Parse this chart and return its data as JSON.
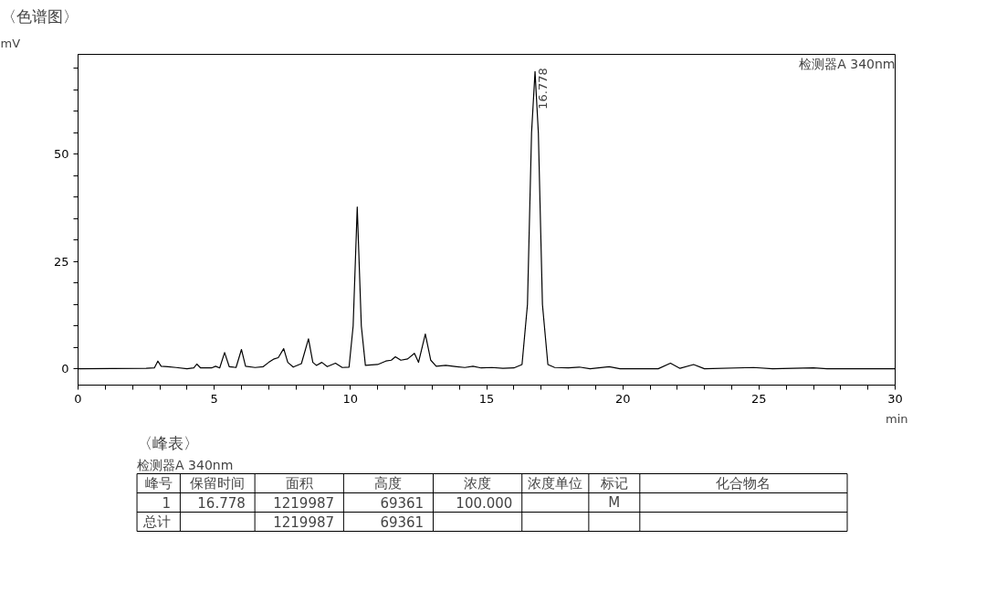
{
  "chart_data": [
    {
      "type": "line",
      "title": "〈色谱图〉",
      "ylabel": "mV",
      "xlabel": "min",
      "x": [
        0,
        2.5,
        2.8,
        2.93,
        3.05,
        3.3,
        3.6,
        4.0,
        4.25,
        4.36,
        4.5,
        4.9,
        5.05,
        5.2,
        5.38,
        5.55,
        5.8,
        6.0,
        6.15,
        6.5,
        6.8,
        7.0,
        7.2,
        7.35,
        7.55,
        7.7,
        7.9,
        8.2,
        8.46,
        8.62,
        8.75,
        8.95,
        9.15,
        9.45,
        9.7,
        9.95,
        10.1,
        10.25,
        10.4,
        10.55,
        11.0,
        11.3,
        11.5,
        11.65,
        11.85,
        12.1,
        12.35,
        12.5,
        12.75,
        12.95,
        13.15,
        13.5,
        13.9,
        14.2,
        14.5,
        14.8,
        15.2,
        15.6,
        16.0,
        16.3,
        16.5,
        16.65,
        16.778,
        16.9,
        17.05,
        17.25,
        17.5,
        18.0,
        18.4,
        18.8,
        19.5,
        19.9,
        21.3,
        21.75,
        22.1,
        22.6,
        23.0,
        24.8,
        25.5,
        27.0,
        27.5,
        30
      ],
      "series": [
        {
          "color": "#000000",
          "values": [
            0,
            0.1,
            0.2,
            1.8,
            0.6,
            0.5,
            0.3,
            0,
            0.2,
            1.1,
            0.2,
            0.2,
            0.6,
            0.2,
            3.8,
            0.5,
            0.3,
            4.5,
            0.6,
            0.3,
            0.5,
            1.5,
            2.3,
            2.6,
            4.7,
            1.5,
            0.4,
            1.2,
            7.0,
            1.5,
            0.8,
            1.5,
            0.5,
            1.3,
            0.3,
            0.4,
            10,
            37.7,
            10,
            0.8,
            1.0,
            1.8,
            2.0,
            2.8,
            2.0,
            2.3,
            3.6,
            1.5,
            8.1,
            2.0,
            0.6,
            0.8,
            0.5,
            0.3,
            0.6,
            0.2,
            0.3,
            0.1,
            0.2,
            1.0,
            15,
            55,
            69.3,
            55,
            15,
            1.0,
            0.3,
            0.2,
            0.4,
            0,
            0.5,
            0,
            0,
            1.3,
            0.1,
            1.0,
            0,
            0.3,
            0,
            0.2,
            0,
            0
          ]
        }
      ],
      "xlim": [
        0,
        30
      ],
      "ylim": [
        -3.8,
        73.3
      ],
      "xticks": [
        0,
        {
          "value": 1,
          "label": null
        },
        {
          "value": 2,
          "label": null
        },
        {
          "value": 3,
          "label": null
        },
        {
          "value": 4,
          "label": null
        },
        5,
        {
          "value": 6,
          "label": null
        },
        {
          "value": 7,
          "label": null
        },
        {
          "value": 8,
          "label": null
        },
        {
          "value": 9,
          "label": null
        },
        10,
        {
          "value": 11,
          "label": null
        },
        {
          "value": 12,
          "label": null
        },
        {
          "value": 13,
          "label": null
        },
        {
          "value": 14,
          "label": null
        },
        15,
        {
          "value": 16,
          "label": null
        },
        {
          "value": 17,
          "label": null
        },
        {
          "value": 18,
          "label": null
        },
        {
          "value": 19,
          "label": null
        },
        20,
        {
          "value": 21,
          "label": null
        },
        {
          "value": 22,
          "label": null
        },
        {
          "value": 23,
          "label": null
        },
        {
          "value": 24,
          "label": null
        },
        25,
        {
          "value": 26,
          "label": null
        },
        {
          "value": 27,
          "label": null
        },
        {
          "value": 28,
          "label": null
        },
        {
          "value": 29,
          "label": null
        },
        30
      ],
      "yticks": [
        0,
        {
          "value": 5,
          "label": null
        },
        {
          "value": 10,
          "label": null
        },
        {
          "value": 15,
          "label": null
        },
        {
          "value": 20,
          "label": null
        },
        25,
        {
          "value": 30,
          "label": null
        },
        {
          "value": 35,
          "label": null
        },
        {
          "value": 40,
          "label": null
        },
        {
          "value": 45,
          "label": null
        },
        50,
        {
          "value": 55,
          "label": null
        },
        {
          "value": 60,
          "label": null
        },
        {
          "value": 65,
          "label": null
        },
        {
          "value": 70,
          "label": null
        }
      ],
      "grid": false,
      "marker": "none",
      "line_style": "solid",
      "annotations": [
        "检测器A 340nm",
        {
          "text": "16.778",
          "x": 16.778,
          "y": 69.3
        }
      ]
    },
    {
      "type": "other",
      "title": "〈峰表〉",
      "subtitle": "检测器A 340nm",
      "categories": [
        "峰号",
        "保留时间",
        "面积",
        "高度",
        "浓度",
        "浓度单位",
        "标记",
        "化合物名"
      ],
      "cell_labels": [
        [
          "1",
          "16.778",
          "1219987",
          "69361",
          "100.000",
          null,
          "M",
          null
        ],
        [
          "总计",
          null,
          "1219987",
          "69361",
          null,
          null,
          null,
          null
        ]
      ]
    }
  ]
}
